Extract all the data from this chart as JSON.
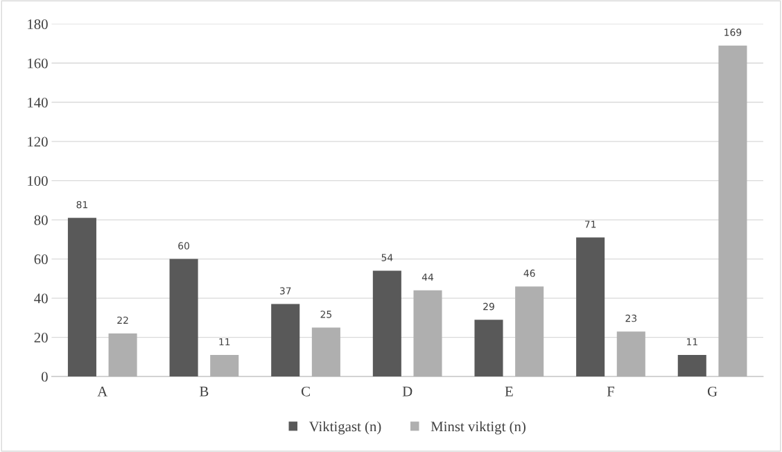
{
  "chart_data": {
    "type": "bar",
    "categories": [
      "A",
      "B",
      "C",
      "D",
      "E",
      "F",
      "G"
    ],
    "series": [
      {
        "name": "Viktigast (n)",
        "color": "#595959",
        "values": [
          81,
          60,
          37,
          54,
          29,
          71,
          11
        ]
      },
      {
        "name": "Minst viktigt (n)",
        "color": "#afafaf",
        "values": [
          22,
          11,
          25,
          44,
          46,
          23,
          169
        ]
      }
    ],
    "ylim": [
      0,
      180
    ],
    "yticks": [
      0,
      20,
      40,
      60,
      80,
      100,
      120,
      140,
      160,
      180
    ],
    "grid": "y",
    "legend": "bottom",
    "data_labels": true
  }
}
